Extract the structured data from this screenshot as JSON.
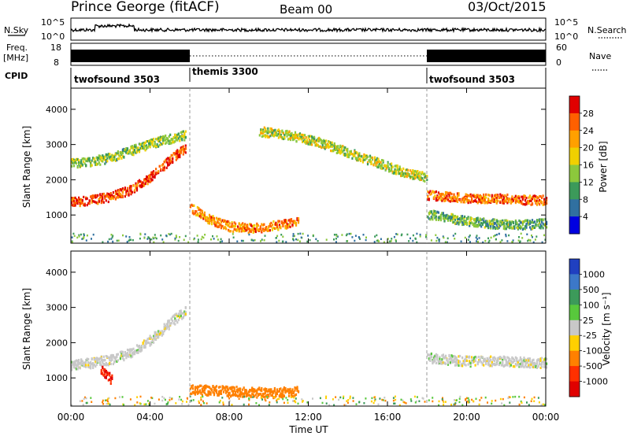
{
  "header": {
    "station": "Prince George (fitACF)",
    "beam": "Beam 00",
    "date": "03/Oct/2015"
  },
  "top_panels": {
    "nsky_label": "N.Sky",
    "nsky_ticks": [
      "10^5",
      "10^0"
    ],
    "nsearch_label": "N.Search",
    "nsearch_ticks": [
      "10^5",
      "10^0"
    ],
    "freq_label_line1": "Freq.",
    "freq_label_line2": "[MHz]",
    "freq_ticks": [
      "18",
      "8"
    ],
    "nave_label": "Nave",
    "nave_ticks": [
      "60",
      "0"
    ],
    "cpid_label": "CPID",
    "cpid_segments": [
      {
        "name": "twofsound 3503",
        "start_hr": 0,
        "end_hr": 6
      },
      {
        "name": "themis 3300",
        "start_hr": 6,
        "end_hr": 18
      },
      {
        "name": "twofsound 3503",
        "start_hr": 18,
        "end_hr": 24
      }
    ]
  },
  "chart_data": [
    {
      "type": "heatmap",
      "title": "",
      "ylabel": "Slant Range [km]",
      "xlabel": "",
      "ylim": [
        200,
        4600
      ],
      "xlim": [
        0,
        24
      ],
      "y_ticks": [
        "1000",
        "2000",
        "3000",
        "4000"
      ],
      "colorbar": {
        "label": "Power [dB]",
        "ticks": [
          "28",
          "24",
          "20",
          "16",
          "12",
          "8",
          "4"
        ],
        "colors": [
          "#e00000",
          "#ff6000",
          "#ffa000",
          "#f0d000",
          "#8cc83c",
          "#3c9a5a",
          "#3070a0",
          "#0000e0"
        ]
      },
      "scatter_bands": [
        {
          "t": [
            0.0,
            1.0,
            2.0,
            3.0,
            4.0,
            5.0,
            5.8
          ],
          "range_km": [
            1400,
            1450,
            1550,
            1750,
            2100,
            2600,
            2950
          ],
          "power_db": 26
        },
        {
          "t": [
            0.0,
            1.0,
            2.0,
            3.0,
            4.0,
            5.0,
            5.8
          ],
          "range_km": [
            2500,
            2550,
            2650,
            2850,
            3050,
            3200,
            3300
          ],
          "power_db": 14
        },
        {
          "t": [
            6.0,
            7.0,
            8.0,
            9.0,
            10.0,
            11.0,
            11.5
          ],
          "range_km": [
            1250,
            900,
            700,
            650,
            700,
            800,
            900
          ],
          "power_db": 22
        },
        {
          "t": [
            9.5,
            11.0,
            12.5,
            14.0,
            15.5,
            17.0,
            18.0
          ],
          "range_km": [
            3400,
            3300,
            3100,
            2800,
            2500,
            2200,
            2100
          ],
          "power_db": 16
        },
        {
          "t": [
            18.0,
            19.0,
            20.0,
            21.0,
            22.0,
            23.0,
            24.0
          ],
          "range_km": [
            1600,
            1550,
            1500,
            1500,
            1500,
            1450,
            1450
          ],
          "power_db": 24
        },
        {
          "t": [
            18.0,
            19.0,
            20.0,
            21.0,
            22.0,
            23.0,
            24.0
          ],
          "range_km": [
            1050,
            950,
            850,
            800,
            750,
            750,
            800
          ],
          "power_db": 12
        }
      ]
    },
    {
      "type": "heatmap",
      "title": "",
      "ylabel": "Slant Range [km]",
      "xlabel": "Time UT",
      "ylim": [
        200,
        4600
      ],
      "xlim": [
        0,
        24
      ],
      "y_ticks": [
        "1000",
        "2000",
        "3000",
        "4000"
      ],
      "x_ticks": [
        "00:00",
        "04:00",
        "08:00",
        "12:00",
        "16:00",
        "20:00",
        "00:00"
      ],
      "colorbar": {
        "label": "Velocity [m s⁻¹]",
        "ticks": [
          "1000",
          "500",
          "100",
          "25",
          "-25",
          "-100",
          "-500",
          "-1000"
        ],
        "colors": [
          "#2040c0",
          "#3c78c8",
          "#3c9a5a",
          "#58c83c",
          "#c8c8c8",
          "#ffd000",
          "#ff8000",
          "#ff3000",
          "#e00000"
        ]
      },
      "scatter_bands": [
        {
          "t": [
            0.0,
            1.0,
            2.0,
            3.0,
            4.0,
            5.0,
            5.8
          ],
          "range_km": [
            1400,
            1450,
            1550,
            1750,
            2100,
            2600,
            2950
          ],
          "velocity": 0
        },
        {
          "t": [
            1.5,
            1.8,
            2.1
          ],
          "range_km": [
            1250,
            1100,
            950
          ],
          "velocity": -1000
        },
        {
          "t": [
            6.0,
            8.0,
            10.0,
            11.5
          ],
          "range_km": [
            700,
            650,
            600,
            650
          ],
          "velocity": -200
        },
        {
          "t": [
            18.0,
            20.0,
            22.0,
            24.0
          ],
          "range_km": [
            1600,
            1500,
            1500,
            1450
          ],
          "velocity": 0
        }
      ]
    }
  ]
}
